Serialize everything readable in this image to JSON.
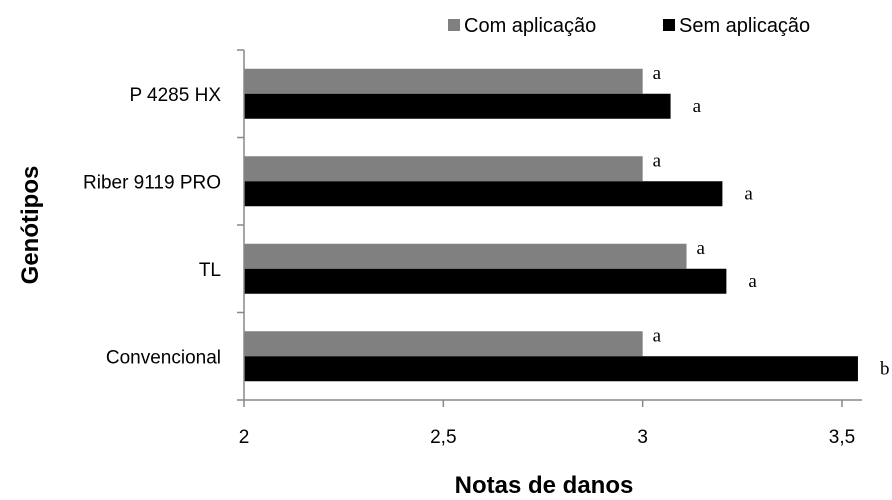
{
  "chart_data": {
    "type": "bar",
    "orientation": "horizontal",
    "categories": [
      "P 4285 HX",
      "Riber 9119 PRO",
      "TL",
      "Convencional"
    ],
    "series": [
      {
        "name": "Com aplicação",
        "color": "#808080",
        "values": [
          3.0,
          3.0,
          3.11,
          3.0
        ],
        "labels": [
          "a",
          "a",
          "a",
          "a"
        ]
      },
      {
        "name": "Sem aplicação",
        "color": "#000000",
        "values": [
          3.07,
          3.2,
          3.21,
          3.54
        ],
        "labels": [
          "a",
          "a",
          "a",
          "b"
        ]
      }
    ],
    "xlabel": "Notas de danos",
    "ylabel": "Genótipos",
    "xlim": [
      2,
      3.55
    ],
    "xticks": [
      "2",
      "2,5",
      "3",
      "3,5"
    ],
    "xtick_values": [
      2,
      2.5,
      3,
      3.5
    ],
    "grid": false,
    "legend_position": "top"
  }
}
